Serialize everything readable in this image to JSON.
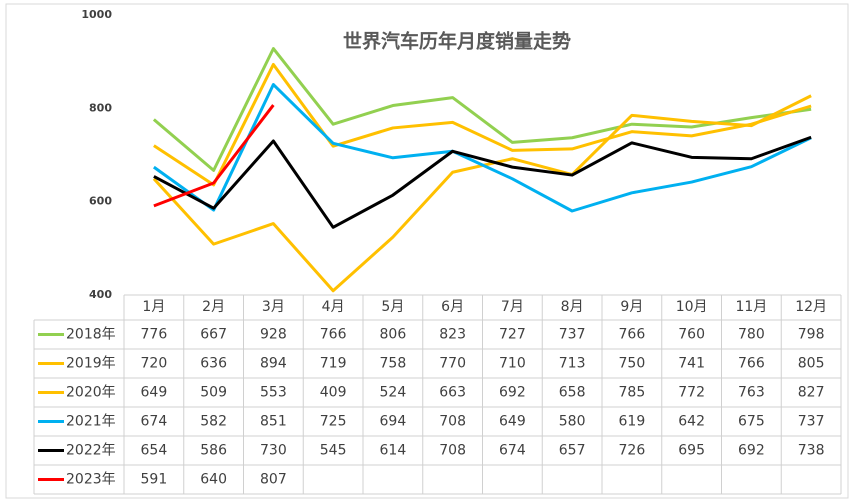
{
  "chart_data": {
    "type": "line",
    "title": "世界汽车历年月度销量走势",
    "categories": [
      "1月",
      "2月",
      "3月",
      "4月",
      "5月",
      "6月",
      "7月",
      "8月",
      "9月",
      "10月",
      "11月",
      "12月"
    ],
    "series": [
      {
        "name": "2018年",
        "color": "#92d050",
        "values": [
          776,
          667,
          928,
          766,
          806,
          823,
          727,
          737,
          766,
          760,
          780,
          798
        ]
      },
      {
        "name": "2019年",
        "color": "#ffc000",
        "values": [
          720,
          636,
          894,
          719,
          758,
          770,
          710,
          713,
          750,
          741,
          766,
          805
        ]
      },
      {
        "name": "2020年",
        "color": "#ffc000",
        "values": [
          649,
          509,
          553,
          409,
          524,
          663,
          692,
          658,
          785,
          772,
          763,
          827
        ]
      },
      {
        "name": "2021年",
        "color": "#00b0f0",
        "values": [
          674,
          582,
          851,
          725,
          694,
          708,
          649,
          580,
          619,
          642,
          675,
          737
        ]
      },
      {
        "name": "2022年",
        "color": "#000000",
        "values": [
          654,
          586,
          730,
          545,
          614,
          708,
          674,
          657,
          726,
          695,
          692,
          738
        ]
      },
      {
        "name": "2023年",
        "color": "#ff0000",
        "values": [
          591,
          640,
          807,
          null,
          null,
          null,
          null,
          null,
          null,
          null,
          null,
          null
        ]
      }
    ],
    "ylim": [
      400,
      1000
    ],
    "yticks": [
      400,
      600,
      800,
      1000
    ],
    "grid": false
  }
}
